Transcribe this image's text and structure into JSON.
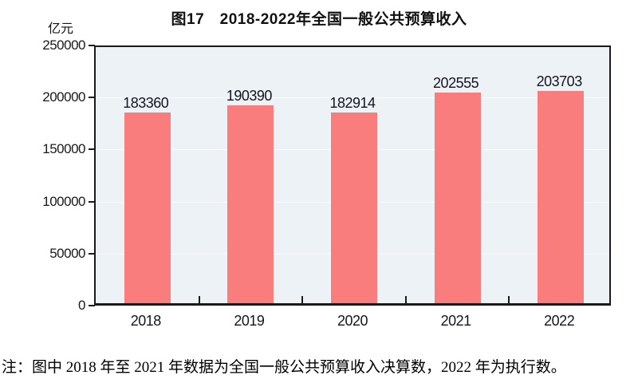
{
  "figure": {
    "title": "图17　2018-2022年全国一般公共预算收入",
    "unit_label": "亿元",
    "note": "注：图中 2018 年至 2021 年数据为全国一般公共预算收入决算数，2022 年为执行数。"
  },
  "chart_data": {
    "type": "bar",
    "title": "图17　2018-2022年全国一般公共预算收入",
    "unit_label": "亿元",
    "categories": [
      "2018",
      "2019",
      "2020",
      "2021",
      "2022"
    ],
    "values": [
      183360,
      190390,
      182914,
      202555,
      203703
    ],
    "xlabel": "",
    "ylabel": "亿元",
    "ylim": [
      0,
      250000
    ],
    "yticks": [
      0,
      50000,
      100000,
      150000,
      200000,
      250000
    ],
    "grid": "faint white horizontal lines at y ticks",
    "legend_position": "none",
    "note": "注：图中 2018 年至 2021 年数据为全国一般公共预算收入决算数，2022 年为执行数。"
  },
  "colors": {
    "bar": "#F97D7D",
    "plot_background": "#EDF2F7",
    "axis": "#1A1A1A",
    "text": "#000000",
    "gridline": "#F8FBFD"
  }
}
